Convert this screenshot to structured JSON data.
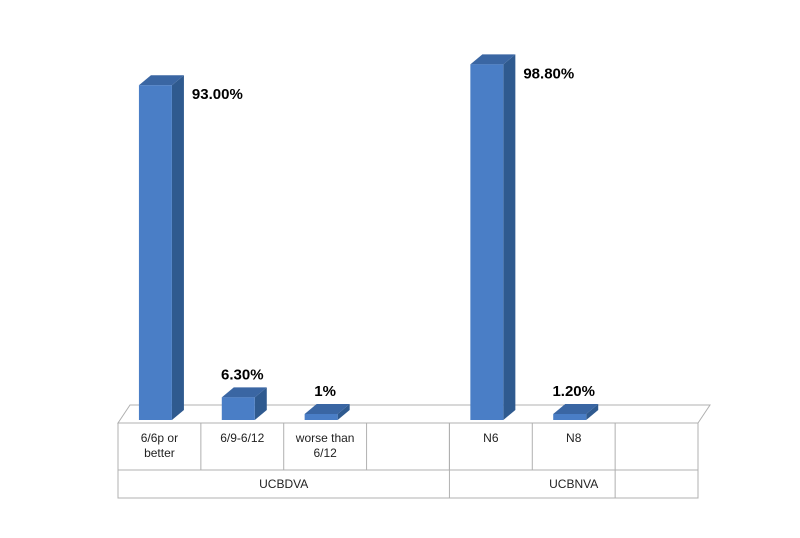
{
  "chart_data": {
    "type": "bar",
    "categories": [
      "6/6p or better",
      "6/9-6/12",
      "worse than 6/12",
      "",
      "N6",
      "N8",
      ""
    ],
    "category_lines": [
      [
        "6/6p or",
        "better"
      ],
      [
        "6/9-6/12"
      ],
      [
        "worse than",
        "6/12"
      ],
      [],
      [
        "N6"
      ],
      [
        "N8"
      ],
      []
    ],
    "groups": [
      {
        "name": "UCBDVA",
        "categories": [
          "6/6p or better",
          "6/9-6/12",
          "worse than 6/12",
          ""
        ]
      },
      {
        "name": "UCBNVA",
        "categories": [
          "N6",
          "N8",
          ""
        ]
      }
    ],
    "values": [
      93.0,
      6.3,
      1.0,
      null,
      98.8,
      1.2,
      null
    ],
    "data_labels": [
      "93.00%",
      "6.30%",
      "1%",
      "",
      "98.80%",
      "1.20%",
      ""
    ],
    "ylim": [
      0,
      100
    ],
    "grid": false,
    "legend": "none",
    "three_d": true,
    "colors": {
      "bar_front": "#4a7ec6",
      "bar_side": "#2f5a8f",
      "bar_top": "#3a66a3",
      "floor_line": "#b0b0b0"
    }
  }
}
